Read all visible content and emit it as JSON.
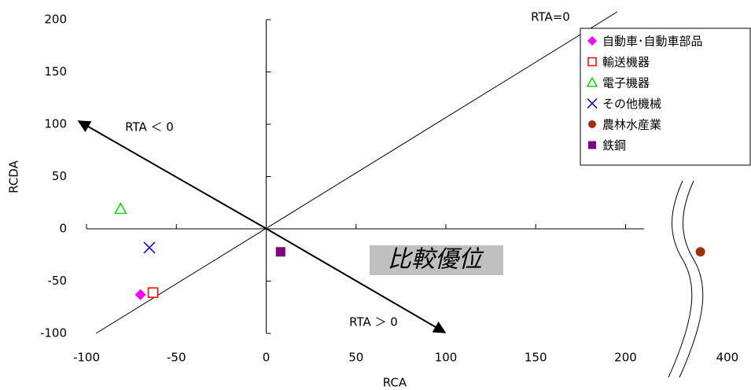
{
  "chart_data": {
    "type": "scatter",
    "xlabel": "RCA",
    "ylabel": "RCDA",
    "xlim": [
      -100,
      400
    ],
    "ylim": [
      -100,
      200
    ],
    "xbreak": [
      220,
      380
    ],
    "xticks": [
      -100,
      -50,
      0,
      50,
      100,
      150,
      200,
      400
    ],
    "yticks": [
      -100,
      -50,
      0,
      50,
      100,
      150,
      200
    ],
    "annotations": [
      "RTA=0",
      "RTA ＜ 0",
      "RTA ＞ 0",
      "比較優位"
    ],
    "series": [
      {
        "name": "自動車･自動車部品",
        "color": "#ff00ff",
        "marker": "diamond",
        "x": [
          -70
        ],
        "values": [
          -63
        ]
      },
      {
        "name": "輸送機器",
        "color": "#ff0000",
        "marker": "square-open",
        "x": [
          -63
        ],
        "values": [
          -61
        ]
      },
      {
        "name": "電子機器",
        "color": "#00dd00",
        "marker": "triangle-open",
        "x": [
          -81
        ],
        "values": [
          19
        ]
      },
      {
        "name": "その他機械",
        "color": "#0000ff",
        "marker": "x",
        "x": [
          -65
        ],
        "values": [
          -18
        ]
      },
      {
        "name": "農林水産業",
        "color": "#a0300a",
        "marker": "circle",
        "x": [
          385
        ],
        "values": [
          -22
        ]
      },
      {
        "name": "鉄鋼",
        "color": "#800080",
        "marker": "square",
        "x": [
          8
        ],
        "values": [
          -22
        ]
      }
    ]
  }
}
